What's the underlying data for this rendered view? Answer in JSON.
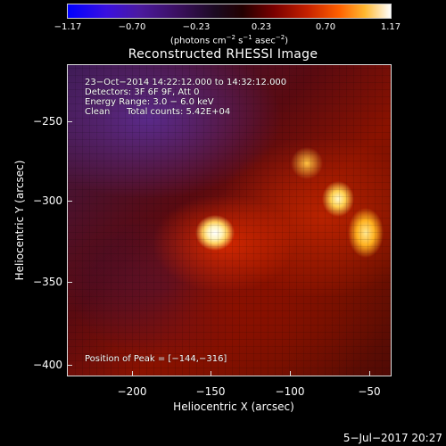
{
  "colorbar": {
    "ticks": [
      "−1.17",
      "−0.70",
      "−0.23",
      "0.23",
      "0.70",
      "1.17"
    ],
    "units_prefix": "(photons cm",
    "units_exp1": "−2",
    "units_mid1": " s",
    "units_exp2": "−1",
    "units_mid2": " asec",
    "units_exp3": "−2",
    "units_suffix": ")"
  },
  "title": "Reconstructed RHESSI Image",
  "annotations": {
    "time_range": "23−Oct−2014 14:22:12.000 to 14:32:12.000",
    "detectors": "Detectors: 3F 6F 9F, Att 0",
    "energy": "Energy Range: 3.0 − 6.0 keV",
    "method": "Clean",
    "total_counts": "Total counts: 5.42E+04",
    "peak": "Position of Peak = [−144,−316]"
  },
  "axes": {
    "xlabel": "Heliocentric X (arcsec)",
    "ylabel": "Heliocentric Y (arcsec)",
    "x_ticks": [
      "−200",
      "−150",
      "−100",
      "−50"
    ],
    "y_ticks": [
      "−250",
      "−300",
      "−350",
      "−400"
    ]
  },
  "footer_date": "5−Jul−2017 20:27",
  "colors": {
    "peak": "#ffffff",
    "background": "#000000",
    "low": "#0000ff",
    "high": "#ffffff"
  }
}
